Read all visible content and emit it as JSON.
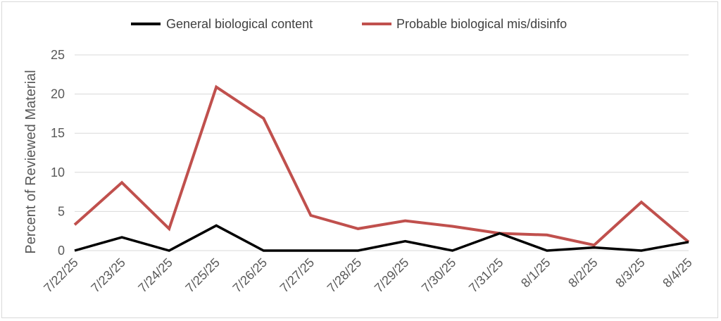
{
  "chart_data": {
    "type": "line",
    "title": "",
    "xlabel": "",
    "ylabel": "Percent of Reviewed Material",
    "ylim": [
      0,
      25
    ],
    "yticks": [
      0,
      5,
      10,
      15,
      20,
      25
    ],
    "grid": true,
    "legend": "top-center",
    "categories": [
      "7/22/25",
      "7/23/25",
      "7/24/25",
      "7/25/25",
      "7/26/25",
      "7/27/25",
      "7/28/25",
      "7/29/25",
      "7/30/25",
      "7/31/25",
      "8/1/25",
      "8/2/25",
      "8/3/25",
      "8/4/25"
    ],
    "series": [
      {
        "name": "General biological content",
        "color": "#000000",
        "values": [
          0,
          1.7,
          0,
          3.2,
          0,
          0,
          0,
          1.2,
          0,
          2.2,
          0,
          0.4,
          0,
          1.1
        ]
      },
      {
        "name": "Probable biological mis/disinfo",
        "color": "#c0504d",
        "values": [
          3.3,
          8.7,
          2.8,
          20.9,
          16.9,
          4.5,
          2.8,
          3.8,
          3.1,
          2.2,
          2.0,
          0.7,
          6.2,
          1.1
        ]
      }
    ]
  }
}
